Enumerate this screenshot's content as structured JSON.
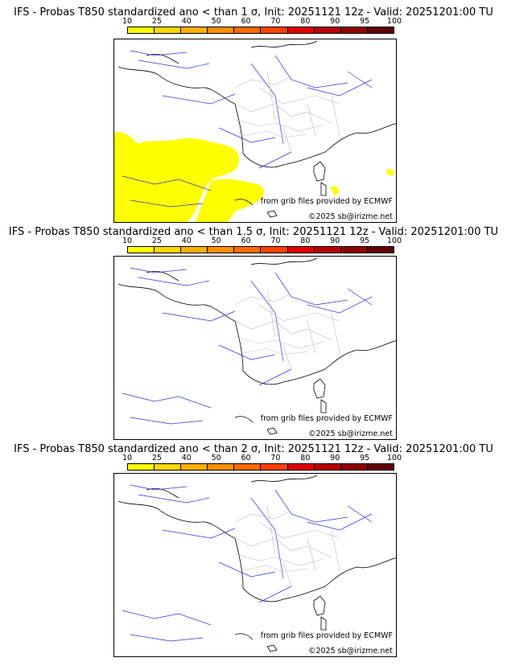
{
  "colorbar": {
    "ticks": [
      "10",
      "25",
      "40",
      "50",
      "60",
      "70",
      "80",
      "90",
      "95",
      "100"
    ],
    "colors": [
      "#ffff00",
      "#ffd800",
      "#ffb000",
      "#ff9000",
      "#ff6a00",
      "#ff4000",
      "#e00000",
      "#b80000",
      "#900000",
      "#600000"
    ]
  },
  "panels": [
    {
      "title": "IFS - Probas T850  standardized ano < than 1 σ, Init: 20251121 12z - Valid: 20251201:00 TU",
      "credit_source": "from grib files provided by ECMWF",
      "credit_copyright": "©2025 sb@irizme.net",
      "probability_area": "yes",
      "probability_color": "#ffff00"
    },
    {
      "title": "IFS - Probas T850  standardized ano < than 1.5 σ, Init: 20251121 12z - Valid: 20251201:00 TU",
      "credit_source": "from grib files provided by ECMWF",
      "credit_copyright": "©2025 sb@irizme.net"
    },
    {
      "title": "IFS - Probas T850  standardized ano < than 2 σ, Init: 20251121 12z - Valid: 20251201:00 TU",
      "credit_source": "from grib files provided by ECMWF",
      "credit_copyright": "©2025 sb@irizme.net"
    }
  ]
}
